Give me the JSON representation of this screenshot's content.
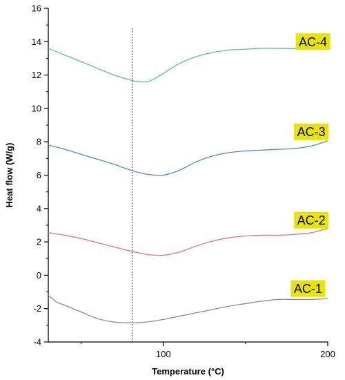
{
  "chart_data": {
    "type": "line",
    "title": "",
    "xlabel": "Temperature (°C)",
    "ylabel": "Heat flow (W/g)",
    "xlim": [
      30,
      200
    ],
    "ylim": [
      -4,
      16
    ],
    "x_ticks": [
      100,
      200
    ],
    "x_tick_labels": [
      "100",
      "200"
    ],
    "y_ticks": [
      -4,
      -2,
      0,
      2,
      4,
      6,
      8,
      10,
      12,
      14,
      16
    ],
    "y_tick_labels": [
      "-4",
      "-2",
      "0",
      "2",
      "4",
      "6",
      "8",
      "10",
      "12",
      "14",
      "16"
    ],
    "grid": false,
    "reference_line": {
      "x": 81,
      "style": "dotted"
    },
    "series": [
      {
        "name": "AC-4",
        "color": "#5cc08a",
        "x": [
          30,
          40,
          50,
          60,
          70,
          80,
          85,
          90,
          95,
          100,
          110,
          120,
          130,
          140,
          150,
          160,
          170,
          180,
          190,
          200
        ],
        "y": [
          13.6,
          13.2,
          12.8,
          12.4,
          12.0,
          11.7,
          11.6,
          11.6,
          11.8,
          12.1,
          12.7,
          13.1,
          13.35,
          13.5,
          13.55,
          13.6,
          13.6,
          13.58,
          13.55,
          13.55
        ]
      },
      {
        "name": "AC-3",
        "color": "#4f86d6",
        "x": [
          30,
          40,
          50,
          60,
          70,
          80,
          90,
          100,
          110,
          120,
          130,
          140,
          150,
          160,
          170,
          180,
          190,
          200
        ],
        "y": [
          7.8,
          7.55,
          7.25,
          6.95,
          6.65,
          6.3,
          6.05,
          6.0,
          6.3,
          6.8,
          7.15,
          7.35,
          7.45,
          7.5,
          7.55,
          7.6,
          7.75,
          8.05
        ]
      },
      {
        "name": "AC-2",
        "color": "#e57373",
        "x": [
          30,
          40,
          50,
          60,
          70,
          80,
          90,
          100,
          110,
          120,
          130,
          140,
          150,
          160,
          170,
          180,
          190,
          200
        ],
        "y": [
          2.55,
          2.4,
          2.2,
          1.95,
          1.7,
          1.45,
          1.25,
          1.2,
          1.4,
          1.75,
          2.05,
          2.25,
          2.35,
          2.4,
          2.4,
          2.45,
          2.55,
          2.8
        ]
      },
      {
        "name": "AC-1",
        "color": "#8a8a8a",
        "x": [
          30,
          35,
          40,
          50,
          60,
          70,
          80,
          90,
          100,
          110,
          120,
          130,
          140,
          150,
          160,
          170,
          180,
          190,
          200
        ],
        "y": [
          -1.2,
          -1.6,
          -1.8,
          -2.2,
          -2.6,
          -2.8,
          -2.85,
          -2.8,
          -2.65,
          -2.45,
          -2.25,
          -2.05,
          -1.85,
          -1.7,
          -1.55,
          -1.45,
          -1.45,
          -1.45,
          -1.4
        ]
      }
    ],
    "series_labels": [
      {
        "text": "AC-4",
        "x": 191,
        "y": 14.0
      },
      {
        "text": "AC-3",
        "x": 190,
        "y": 8.6
      },
      {
        "text": "AC-2",
        "x": 190,
        "y": 3.3
      },
      {
        "text": "AC-1",
        "x": 188,
        "y": -0.8
      }
    ],
    "label_background": "#e8e400"
  }
}
